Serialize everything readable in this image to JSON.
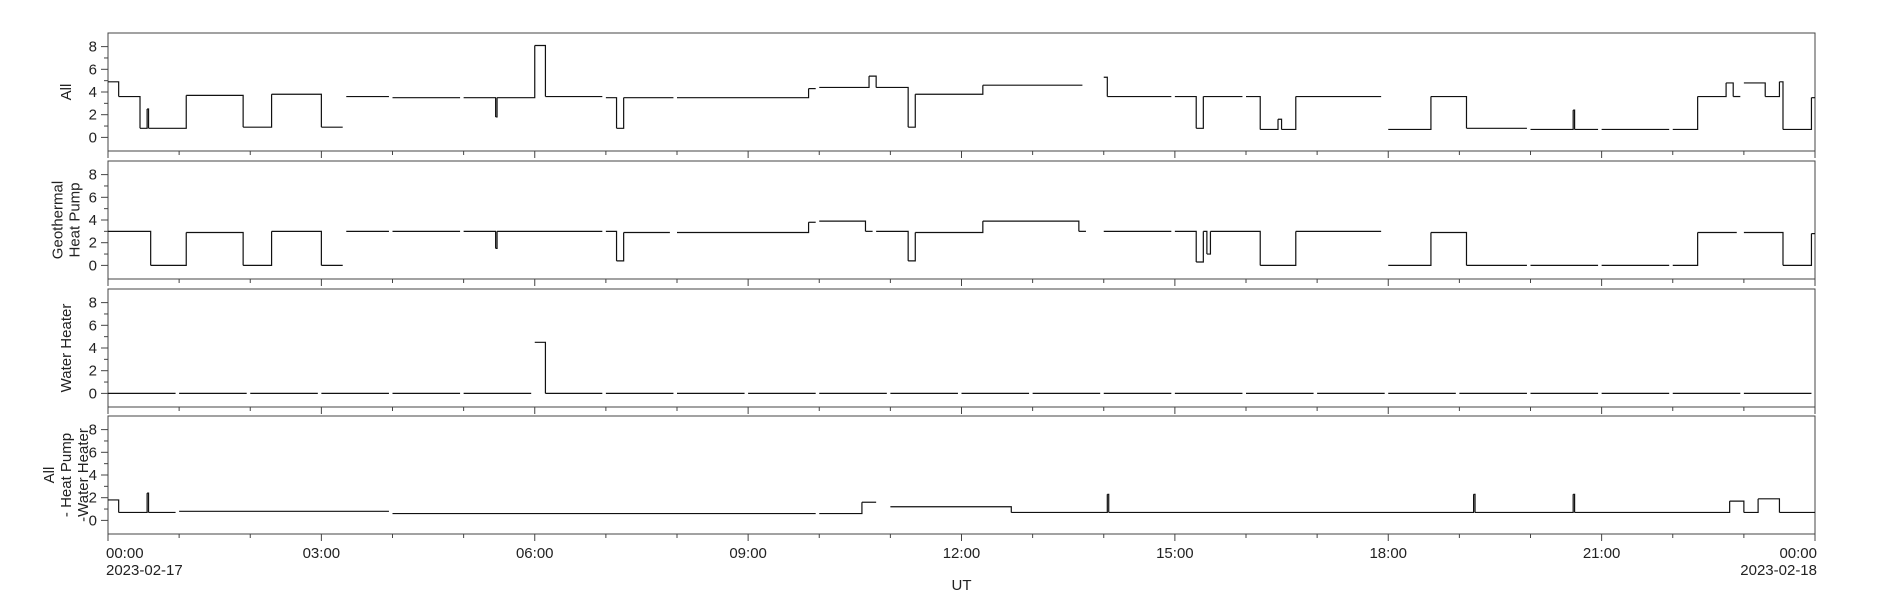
{
  "x_axis": {
    "xlim": [
      0,
      24
    ],
    "xticks": [
      {
        "value": 0,
        "label": "00:00"
      },
      {
        "value": 3,
        "label": "03:00"
      },
      {
        "value": 6,
        "label": "06:00"
      },
      {
        "value": 9,
        "label": "09:00"
      },
      {
        "value": 12,
        "label": "12:00"
      },
      {
        "value": 15,
        "label": "15:00"
      },
      {
        "value": 18,
        "label": "18:00"
      },
      {
        "value": 21,
        "label": "21:00"
      },
      {
        "value": 24,
        "label": "00:00"
      }
    ],
    "xminor_ticks": [
      1,
      2,
      4,
      5,
      7,
      8,
      10,
      11,
      13,
      14,
      16,
      17,
      19,
      20,
      22,
      23
    ],
    "xtick_dates": [
      {
        "value": 0,
        "label": "2023-02-17"
      },
      {
        "value": 24,
        "label": "2023-02-18"
      }
    ],
    "xlabel": "UT"
  },
  "chart_data": [
    {
      "type": "line",
      "step": true,
      "color": "#111111",
      "ylabel": [
        "All"
      ],
      "ylim": [
        -1.2,
        9.2
      ],
      "yticks": [
        0,
        2,
        4,
        6,
        8
      ],
      "yminor_ticks": [
        1,
        3,
        5,
        7
      ],
      "x": [
        0,
        0.15,
        0.45,
        0.55,
        0.57,
        1.1,
        1.9,
        2.3,
        3.0,
        3.3,
        3.35,
        3.95,
        4.0,
        4.95,
        5.0,
        5.45,
        5.47,
        6.0,
        6.15,
        6.95,
        7.0,
        7.15,
        7.25,
        7.95,
        8.0,
        9.85,
        9.95,
        10.0,
        10.7,
        10.8,
        11.25,
        11.35,
        12.3,
        13.7,
        14.0,
        14.05,
        14.95,
        15.0,
        15.3,
        15.4,
        15.95,
        16.0,
        16.2,
        16.45,
        16.5,
        16.7,
        17.9,
        18.0,
        18.6,
        19.1,
        19.95,
        20.0,
        20.6,
        20.62,
        20.95,
        21.0,
        21.95,
        22.0,
        22.35,
        22.75,
        22.85,
        22.95,
        23.0,
        23.3,
        23.5,
        23.55,
        23.95,
        24
      ],
      "values": [
        4.9,
        3.6,
        0.8,
        2.5,
        0.8,
        3.7,
        0.9,
        3.8,
        0.9,
        null,
        3.6,
        null,
        3.5,
        null,
        3.5,
        1.8,
        3.5,
        8.1,
        3.6,
        null,
        3.5,
        0.8,
        3.5,
        null,
        3.5,
        4.3,
        null,
        4.4,
        5.4,
        4.4,
        0.9,
        3.8,
        4.6,
        null,
        5.3,
        3.6,
        null,
        3.6,
        0.8,
        3.6,
        null,
        3.6,
        0.7,
        1.6,
        0.7,
        3.6,
        null,
        0.7,
        3.6,
        0.8,
        null,
        0.7,
        2.4,
        0.7,
        null,
        0.7,
        null,
        0.7,
        3.6,
        4.8,
        3.6,
        null,
        4.8,
        3.6,
        4.9,
        0.7,
        3.5,
        3.5
      ]
    },
    {
      "type": "line",
      "step": true,
      "color": "#111111",
      "ylabel": [
        "Geothermal",
        "Heat Pump"
      ],
      "ylim": [
        -1.2,
        9.2
      ],
      "yticks": [
        0,
        2,
        4,
        6,
        8
      ],
      "yminor_ticks": [
        1,
        3,
        5,
        7
      ],
      "x": [
        0,
        0.6,
        1.1,
        1.9,
        2.3,
        3.0,
        3.3,
        3.35,
        3.95,
        4.0,
        4.95,
        5.0,
        5.45,
        5.47,
        6.95,
        7.0,
        7.15,
        7.25,
        7.9,
        8.0,
        9.85,
        9.95,
        10.0,
        10.65,
        10.75,
        10.8,
        11.25,
        11.35,
        12.3,
        13.65,
        13.75,
        14.0,
        14.95,
        15.0,
        15.3,
        15.4,
        15.45,
        15.5,
        16.2,
        16.7,
        17.9,
        18.0,
        18.6,
        19.1,
        19.95,
        20.0,
        20.95,
        21.0,
        21.95,
        22.0,
        22.35,
        22.9,
        23.0,
        23.55,
        23.95,
        24
      ],
      "values": [
        3.0,
        0,
        2.9,
        0,
        3.0,
        0,
        null,
        3.0,
        null,
        3.0,
        null,
        3.0,
        1.5,
        3.0,
        null,
        3.0,
        0.4,
        2.9,
        null,
        2.9,
        3.8,
        null,
        3.9,
        3.0,
        null,
        3.0,
        0.4,
        2.9,
        3.9,
        3.0,
        null,
        3.0,
        null,
        3.0,
        0.3,
        3.0,
        1.0,
        3.0,
        0,
        3.0,
        null,
        0,
        2.9,
        0,
        null,
        0,
        null,
        0,
        null,
        0,
        2.9,
        null,
        2.9,
        0,
        2.8,
        2.8
      ]
    },
    {
      "type": "line",
      "step": true,
      "color": "#111111",
      "ylabel": [
        "Water Heater"
      ],
      "ylim": [
        -1.2,
        9.2
      ],
      "yticks": [
        0,
        2,
        4,
        6,
        8
      ],
      "yminor_ticks": [
        1,
        3,
        5,
        7
      ],
      "x": [
        0,
        0.95,
        1.0,
        1.95,
        2.0,
        2.95,
        3.0,
        3.95,
        4.0,
        4.95,
        5.0,
        5.95,
        6.0,
        6.15,
        6.95,
        7.0,
        7.95,
        8.0,
        8.95,
        9.0,
        9.95,
        10.0,
        10.95,
        11.0,
        11.95,
        12.0,
        12.95,
        13.0,
        13.95,
        14.0,
        14.95,
        15.0,
        15.95,
        16.0,
        16.95,
        17.0,
        17.95,
        18.0,
        18.95,
        19.0,
        19.95,
        20.0,
        20.95,
        21.0,
        21.95,
        22.0,
        22.95,
        23.0,
        23.95,
        24
      ],
      "values": [
        0,
        null,
        0,
        null,
        0,
        null,
        0,
        null,
        0,
        null,
        0,
        null,
        4.5,
        0,
        null,
        0,
        null,
        0,
        null,
        0,
        null,
        0,
        null,
        0,
        null,
        0,
        null,
        0,
        null,
        0,
        null,
        0,
        null,
        0,
        null,
        0,
        null,
        0,
        null,
        0,
        null,
        0,
        null,
        0,
        null,
        0,
        null,
        0,
        null,
        0
      ]
    },
    {
      "type": "line",
      "step": true,
      "color": "#111111",
      "ylabel": [
        "All",
        "- Heat Pump",
        "-Water Heater"
      ],
      "ylim": [
        -1.2,
        9.2
      ],
      "yticks": [
        0,
        2,
        4,
        6,
        8
      ],
      "yminor_ticks": [
        1,
        3,
        5,
        7
      ],
      "x": [
        0,
        0.15,
        0.55,
        0.57,
        0.95,
        1.0,
        3.95,
        4.0,
        9.95,
        10.0,
        10.6,
        10.8,
        11.0,
        12.7,
        14.05,
        14.07,
        19.2,
        19.22,
        20.6,
        20.62,
        22.8,
        23.0,
        23.2,
        23.5,
        24
      ],
      "values": [
        1.8,
        0.7,
        2.4,
        0.7,
        null,
        0.8,
        null,
        0.6,
        null,
        0.6,
        1.6,
        null,
        1.2,
        0.7,
        2.3,
        0.7,
        2.3,
        0.7,
        2.3,
        0.7,
        1.7,
        0.7,
        1.9,
        0.7,
        0.7
      ]
    }
  ]
}
